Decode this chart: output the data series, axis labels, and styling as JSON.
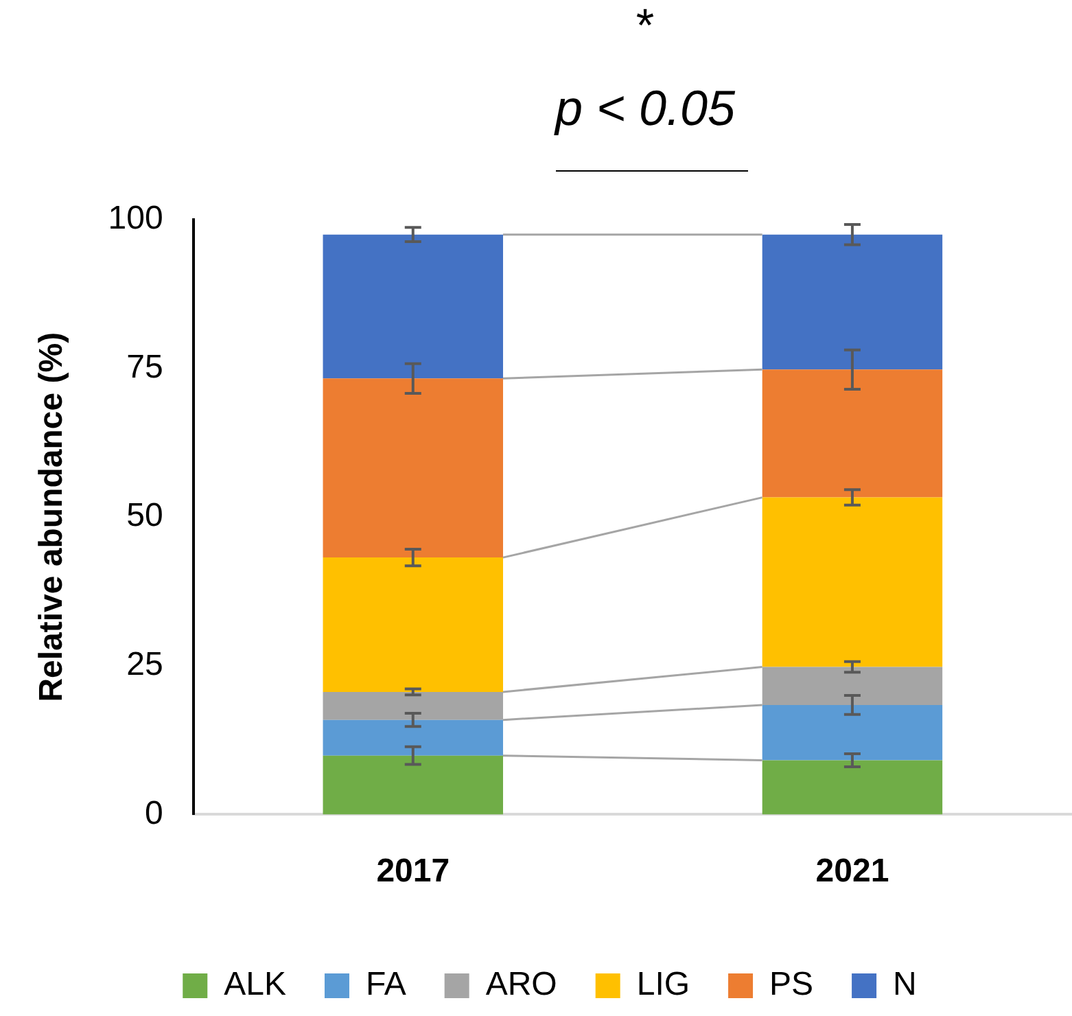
{
  "chart_data": {
    "type": "bar",
    "stacked": true,
    "ylabel": "Relative abundance (%)",
    "categories": [
      "2017",
      "2021"
    ],
    "ylim": [
      0,
      100
    ],
    "yticks": [
      0,
      25,
      50,
      75,
      100
    ],
    "grid": false,
    "legend": "bottom",
    "annotations": [
      "*",
      "p < 0.05"
    ],
    "series": [
      {
        "name": "ALK",
        "color": "#70ad47",
        "values": [
          9.9,
          9.1
        ],
        "errors": [
          1.5,
          1.1
        ]
      },
      {
        "name": "FA",
        "color": "#5b9bd5",
        "values": [
          6.0,
          9.3
        ],
        "errors": [
          1.1,
          1.6
        ]
      },
      {
        "name": "ARO",
        "color": "#a5a5a5",
        "values": [
          4.7,
          6.4
        ],
        "errors": [
          0.5,
          0.9
        ]
      },
      {
        "name": "LIG",
        "color": "#ffc000",
        "values": [
          22.6,
          28.5
        ],
        "errors": [
          1.4,
          1.3
        ]
      },
      {
        "name": "PS",
        "color": "#ed7d31",
        "values": [
          30.1,
          21.5
        ],
        "errors": [
          2.5,
          3.3
        ]
      },
      {
        "name": "N",
        "color": "#4472c4",
        "values": [
          24.2,
          22.7
        ],
        "errors": [
          1.2,
          1.7
        ]
      }
    ]
  }
}
